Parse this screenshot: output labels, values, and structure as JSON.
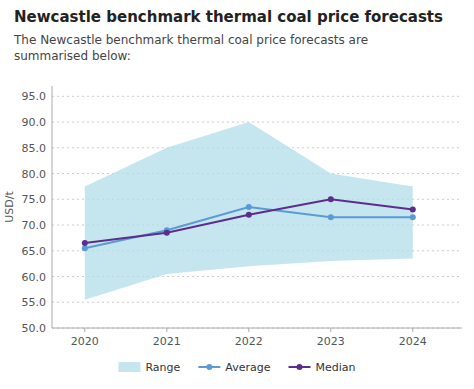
{
  "chart_data": {
    "type": "line",
    "title": "Newcastle benchmark thermal coal price forecasts",
    "subtitle": "The Newcastle benchmark thermal coal price forecasts are\nsummarised below:",
    "y_label": "USD/t",
    "x": [
      2020,
      2021,
      2022,
      2023,
      2024
    ],
    "xlim": [
      2019.6,
      2024.6
    ],
    "xticks": [
      2020,
      2021,
      2022,
      2023,
      2024
    ],
    "ylim": [
      50.0,
      97.0
    ],
    "yticks": [
      {
        "value": 50.0,
        "label": "50.0"
      },
      {
        "value": 55.0,
        "label": "55.0"
      },
      {
        "value": 60.0,
        "label": "60.0"
      },
      {
        "value": 65.0,
        "label": "65.0"
      },
      {
        "value": 70.0,
        "label": "70.0"
      },
      {
        "value": 75.0,
        "label": "75.0"
      },
      {
        "value": 80.0,
        "label": "80.0"
      },
      {
        "value": 85.0,
        "label": "85.0"
      },
      {
        "value": 90.0,
        "label": "90.0"
      },
      {
        "value": 95.0,
        "label": "95.0"
      }
    ],
    "grid": true,
    "legend": "bottom",
    "series": [
      {
        "name": "Range",
        "type": "area",
        "color": "#b2dde8",
        "low": [
          55.5,
          60.5,
          62.0,
          63.0,
          63.5
        ],
        "high": [
          77.5,
          85.0,
          90.0,
          80.0,
          77.5
        ]
      },
      {
        "name": "Average",
        "type": "line",
        "color": "#5b9bd5",
        "marker": "circle",
        "values": [
          65.5,
          69.0,
          73.5,
          71.5,
          71.5
        ]
      },
      {
        "name": "Median",
        "type": "line",
        "color": "#5c2d8c",
        "marker": "circle",
        "values": [
          66.5,
          68.5,
          72.0,
          75.0,
          73.0
        ]
      }
    ]
  }
}
